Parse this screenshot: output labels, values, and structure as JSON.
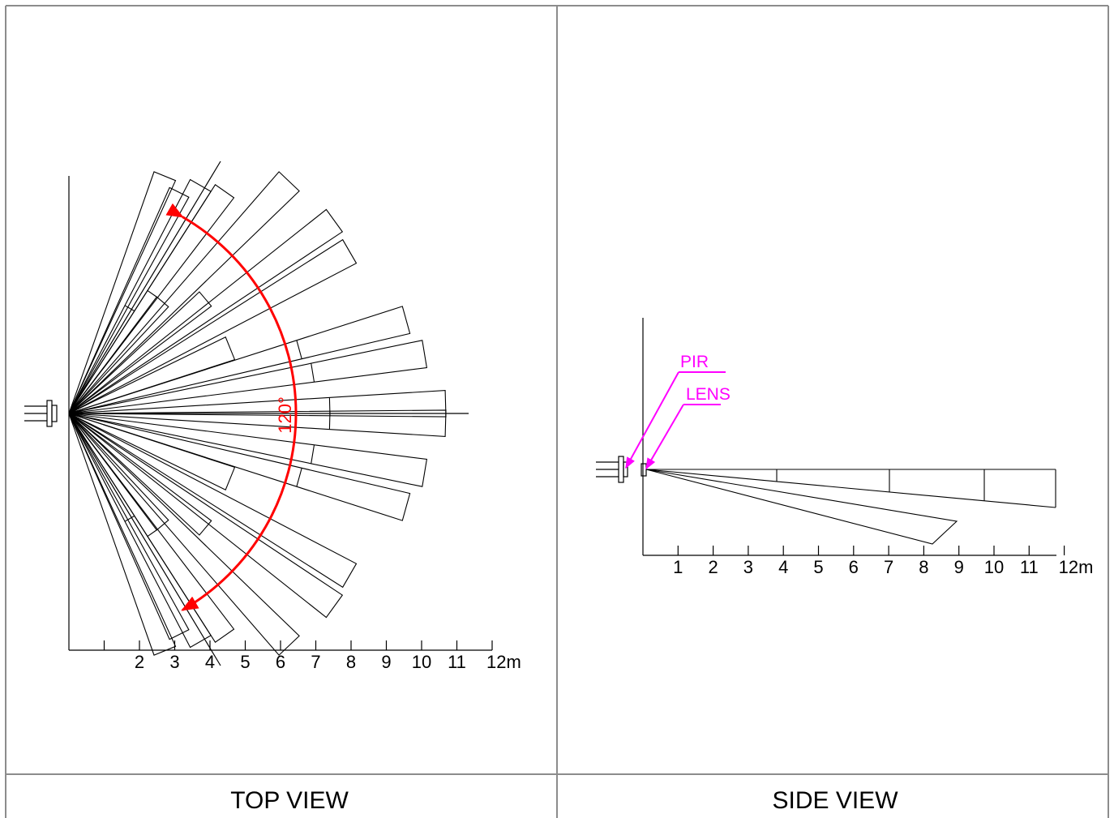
{
  "top_view": {
    "caption": "TOP VIEW",
    "axis_ticks": [
      "",
      "2",
      "3",
      "4",
      "5",
      "6",
      "7",
      "8",
      "9",
      "10",
      "11",
      "12m"
    ],
    "coverage_angle_label": "120°",
    "coverage_angle_deg": 120
  },
  "side_view": {
    "caption": "SIDE VIEW",
    "axis_ticks": [
      "1",
      "2",
      "3",
      "4",
      "5",
      "6",
      "7",
      "8",
      "9",
      "10",
      "11",
      "12m"
    ],
    "callouts": {
      "pir": "PIR",
      "lens": "LENS"
    }
  },
  "colors": {
    "frame": "#8c8c8c",
    "lines": "#000000",
    "angle_arc": "#ff0000",
    "callout": "#ff00ff"
  }
}
